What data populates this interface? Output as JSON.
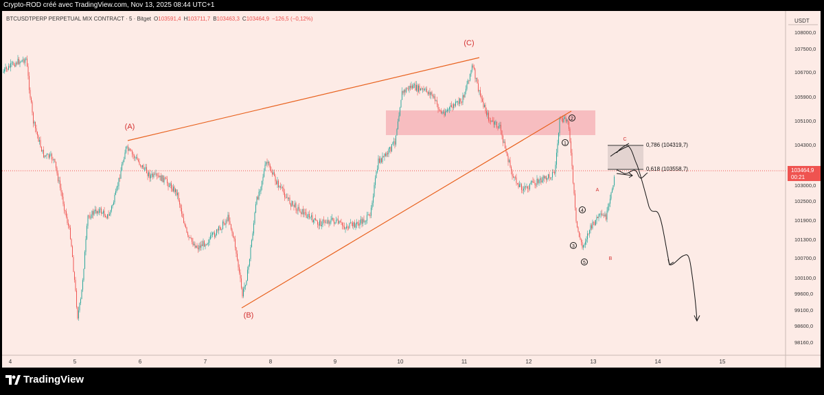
{
  "header": {
    "caption": "Crypto-ROD créé avec TradingView.com, Nov 13, 2025 08:44 UTC+1"
  },
  "symbol_bar": {
    "title": "BTCUSDTPERP PERPETUAL MIX CONTRACT · 5 · Bitget",
    "o_label": "O",
    "o_value": "103591,4",
    "h_label": "H",
    "h_value": "103711,7",
    "l_label": "B",
    "l_value": "103463,3",
    "c_label": "C",
    "c_value": "103464,9",
    "change": "−126,5 (−0,12%)"
  },
  "price_axis": {
    "currency": "USDT",
    "ticks": [
      "108000,0",
      "107500,0",
      "106700,0",
      "105900,0",
      "105100,0",
      "104300,0",
      "103000,0",
      "102500,0",
      "101900,0",
      "101300,0",
      "100700,0",
      "100100,0",
      "99600,0",
      "99100,0",
      "98600,0",
      "98160,0"
    ],
    "last_price": "103464,9",
    "countdown": "00:21"
  },
  "time_axis": {
    "ticks": [
      "4",
      "5",
      "6",
      "7",
      "8",
      "9",
      "10",
      "11",
      "12",
      "13",
      "14",
      "15"
    ]
  },
  "annotations": {
    "wave_A": "(A)",
    "wave_B": "(B)",
    "wave_C": "(C)",
    "sub_1": "1",
    "sub_2": "2",
    "sub_3": "3",
    "sub_4": "4",
    "sub_5": "5",
    "corr_A": "A",
    "corr_B": "B",
    "corr_C": "C",
    "fib_786": "0,786",
    "fib_786_price": "(104319,7)",
    "fib_618": "0,618",
    "fib_618_price": "(103558,7)"
  },
  "brand": {
    "name": "TradingView"
  },
  "colors": {
    "background": "#fdebe6",
    "candle_up": "#26a69a",
    "candle_down": "#ef5350",
    "trendline": "#e8601c",
    "supply_zone": "#f6b5b8",
    "wave_label": "#d32f2f",
    "last_price_badge": "#ef5350"
  }
}
